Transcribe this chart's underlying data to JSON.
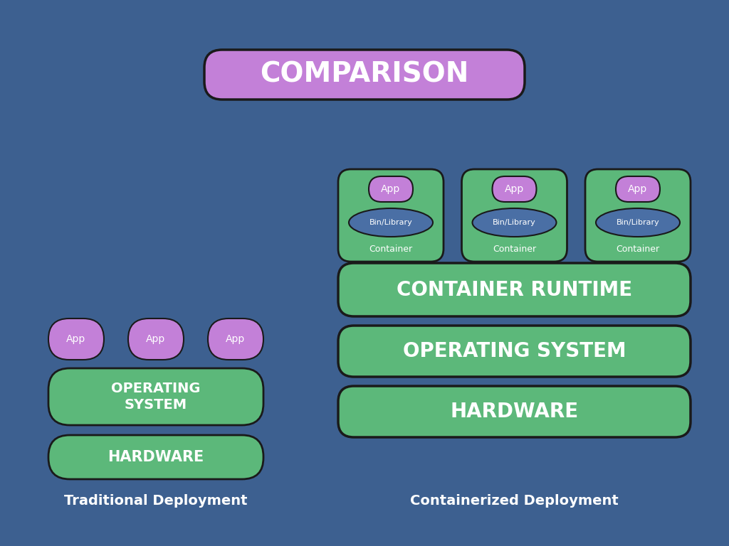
{
  "bg_color": "#3d6090",
  "purple_color": "#c380d8",
  "green_color": "#5cb87a",
  "blue_circle_color": "#4a6fa5",
  "black_outline": "#1a1a1a",
  "white_text": "#ffffff",
  "title": "COMPARISON",
  "title_bg": "#c380d8",
  "trad_label": "Traditional Deployment",
  "cont_label": "Containerized Deployment",
  "app_text": "App",
  "bin_lib_text": "Bin/Library",
  "container_text": "Container",
  "os_text_trad": "OPERATING\nSYSTEM",
  "hw_text": "HARDWARE",
  "os_text_cont": "OPERATING SYSTEM",
  "cr_text": "CONTAINER RUNTIME"
}
